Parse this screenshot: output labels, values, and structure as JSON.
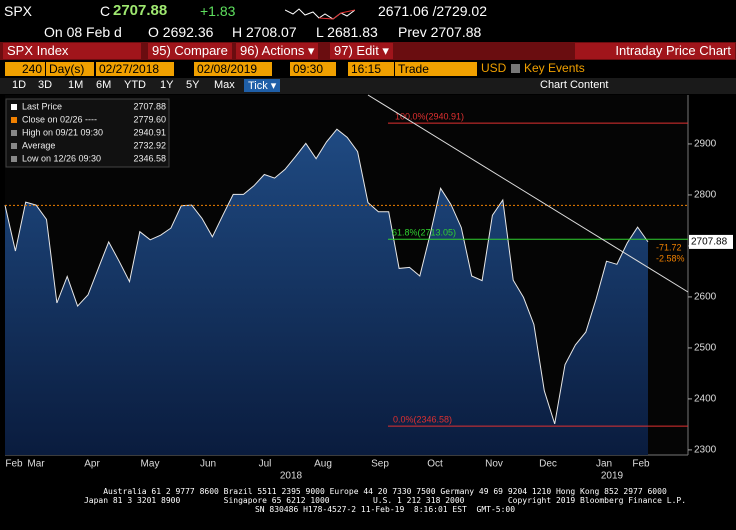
{
  "header": {
    "ticker": "SPX",
    "c_label": "C",
    "last": "2707.88",
    "change": "+1.83",
    "range": "2671.06 /2729.02",
    "date": "On 08 Feb d",
    "open": "O 2692.36",
    "high": "H 2708.07",
    "low": "L 2681.83",
    "prev": "Prev 2707.88"
  },
  "toolbar": {
    "security": "SPX Index",
    "compare": "95) Compare",
    "actions": "96) Actions ▾",
    "edit": "97) Edit ▾",
    "title": "Intraday Price Chart"
  },
  "params": {
    "bars": "240",
    "unit": "Day(s)",
    "start": "02/27/2018",
    "end": "02/08/2019",
    "t0": "09:30",
    "t1": "16:15",
    "field": "Trade",
    "currency": "USD",
    "events": "Key Events"
  },
  "ranges": {
    "buttons": [
      "1D",
      "3D",
      "1M",
      "6M",
      "YTD",
      "1Y",
      "5Y",
      "Max"
    ],
    "tick": "Tick ▾",
    "content": "Chart Content"
  },
  "chart_data": {
    "type": "area",
    "values": [
      2780,
      2690,
      2786,
      2780,
      2752,
      2588,
      2640,
      2582,
      2604,
      2656,
      2708,
      2670,
      2630,
      2728,
      2712,
      2721,
      2735,
      2779,
      2780,
      2754,
      2718,
      2760,
      2801,
      2801,
      2818,
      2840,
      2833,
      2850,
      2875,
      2901,
      2871,
      2904,
      2929,
      2913,
      2885,
      2785,
      2767,
      2767,
      2656,
      2658,
      2641,
      2723,
      2813,
      2781,
      2736,
      2641,
      2632,
      2760,
      2790,
      2633,
      2599,
      2546,
      2416,
      2351,
      2467,
      2506,
      2531,
      2596,
      2670,
      2664,
      2706,
      2737,
      2708
    ],
    "ylim": [
      2290,
      2996
    ],
    "yticks": [
      2300,
      2400,
      2500,
      2600,
      2700,
      2800,
      2900
    ],
    "legend": [
      {
        "name": "Last Price",
        "value_label": "2707.88",
        "value": 2707.88
      },
      {
        "name": "Close on 02/26 ----",
        "value_label": "2779.60",
        "value": 2779.6
      },
      {
        "name": "High on 09/21 09:30",
        "value_label": "2940.91",
        "value": 2940.91
      },
      {
        "name": "Average",
        "value_label": "2732.92",
        "value": 2732.92
      },
      {
        "name": "Low on 12/26 09:30",
        "value_label": "2346.58",
        "value": 2346.58
      }
    ],
    "fib_levels": [
      {
        "label": "100.0%(2940.91)",
        "value": 2940.91,
        "color": "#e03030"
      },
      {
        "label": "61.8%(2713.05)",
        "value": 2713.05,
        "color": "#30d030"
      },
      {
        "label": "0.0%(2346.58)",
        "value": 2346.58,
        "color": "#e03030"
      }
    ],
    "change_labels": [
      "-71.72",
      "-2.58%"
    ],
    "months": [
      "Feb",
      "Mar",
      "Apr",
      "May",
      "Jun",
      "Jul",
      "Aug",
      "Sep",
      "Oct",
      "Nov",
      "Dec",
      "Jan",
      "Feb"
    ],
    "years": [
      "2018",
      "2019"
    ]
  },
  "footer": [
    "Australia 61 2 9777 8600 Brazil 5511 2395 9000 Europe 44 20 7330 7500 Germany 49 69 9204 1210 Hong Kong 852 2977 6000",
    "Japan 81 3 3201 8900         Singapore 65 6212 1000         U.S. 1 212 318 2000         Copyright 2019 Bloomberg Finance L.P.",
    "SN 830486 H178-4527-2 11-Feb-19  8:16:01 EST  GMT-5:00"
  ]
}
